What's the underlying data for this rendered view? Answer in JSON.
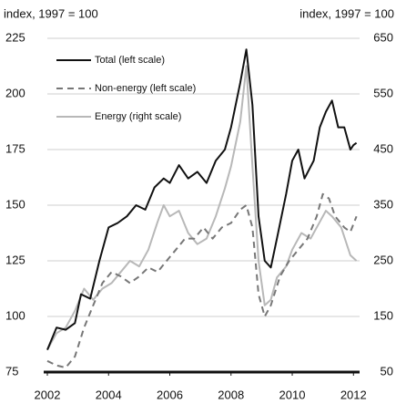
{
  "chart_data": {
    "type": "line",
    "y_label": "index, 1997 = 100",
    "y2_label": "index, 1997 = 100",
    "xlim": [
      2002,
      2012.2
    ],
    "xticks": [
      2002,
      2004,
      2006,
      2008,
      2010,
      2012
    ],
    "ylim": [
      75,
      225
    ],
    "yticks": [
      75,
      100,
      125,
      150,
      175,
      200,
      225
    ],
    "y2lim": [
      50,
      650
    ],
    "y2ticks": [
      50,
      150,
      250,
      350,
      450,
      550,
      650
    ],
    "grid": true,
    "legend": "upper left",
    "series": [
      {
        "name": "Total (left scale)",
        "color": "#111111",
        "dash": "solid",
        "x": [
          2002.0,
          2002.3,
          2002.6,
          2002.9,
          2003.1,
          2003.4,
          2003.7,
          2004.0,
          2004.3,
          2004.6,
          2004.9,
          2005.2,
          2005.5,
          2005.8,
          2006.0,
          2006.3,
          2006.6,
          2006.9,
          2007.2,
          2007.5,
          2007.8,
          2008.0,
          2008.3,
          2008.5,
          2008.7,
          2008.9,
          2009.1,
          2009.3,
          2009.5,
          2009.8,
          2010.0,
          2010.2,
          2010.4,
          2010.7,
          2010.9,
          2011.1,
          2011.3,
          2011.5,
          2011.7,
          2011.9,
          2012.0,
          2012.1
        ],
        "values": [
          85,
          95,
          94,
          97,
          110,
          108,
          125,
          140,
          142,
          145,
          150,
          148,
          158,
          162,
          160,
          168,
          162,
          165,
          160,
          170,
          175,
          185,
          205,
          220,
          195,
          145,
          125,
          122,
          135,
          155,
          170,
          175,
          162,
          170,
          185,
          192,
          197,
          185,
          185,
          175,
          177,
          178
        ]
      },
      {
        "name": "Non-energy (left scale)",
        "color": "#777777",
        "dash": "dashed",
        "x": [
          2002.0,
          2002.3,
          2002.6,
          2002.9,
          2003.2,
          2003.5,
          2003.8,
          2004.1,
          2004.4,
          2004.7,
          2005.0,
          2005.3,
          2005.6,
          2005.9,
          2006.2,
          2006.5,
          2006.8,
          2007.1,
          2007.4,
          2007.7,
          2008.0,
          2008.3,
          2008.5,
          2008.7,
          2008.9,
          2009.1,
          2009.3,
          2009.6,
          2009.9,
          2010.2,
          2010.5,
          2010.8,
          2011.0,
          2011.2,
          2011.4,
          2011.7,
          2011.9,
          2012.1
        ],
        "values": [
          80,
          78,
          77,
          82,
          95,
          105,
          115,
          120,
          118,
          115,
          118,
          122,
          120,
          125,
          130,
          135,
          135,
          140,
          135,
          140,
          142,
          148,
          150,
          140,
          110,
          100,
          105,
          118,
          125,
          130,
          135,
          145,
          155,
          153,
          145,
          140,
          138,
          145
        ]
      },
      {
        "name": "Energy (right scale)",
        "color": "#b8b8b8",
        "dash": "solid",
        "axis": "y2",
        "x": [
          2002.0,
          2002.3,
          2002.6,
          2002.9,
          2003.2,
          2003.5,
          2003.8,
          2004.1,
          2004.4,
          2004.7,
          2005.0,
          2005.3,
          2005.6,
          2005.8,
          2006.0,
          2006.3,
          2006.6,
          2006.9,
          2007.2,
          2007.5,
          2007.8,
          2008.0,
          2008.3,
          2008.5,
          2008.7,
          2008.9,
          2009.1,
          2009.3,
          2009.5,
          2009.8,
          2010.0,
          2010.3,
          2010.6,
          2010.9,
          2011.1,
          2011.3,
          2011.6,
          2011.9,
          2012.1
        ],
        "values": [
          90,
          120,
          130,
          160,
          200,
          180,
          200,
          210,
          230,
          250,
          240,
          270,
          320,
          350,
          330,
          340,
          300,
          280,
          290,
          330,
          380,
          420,
          500,
          600,
          420,
          250,
          170,
          180,
          220,
          240,
          270,
          300,
          290,
          320,
          340,
          330,
          310,
          260,
          250
        ]
      }
    ]
  }
}
